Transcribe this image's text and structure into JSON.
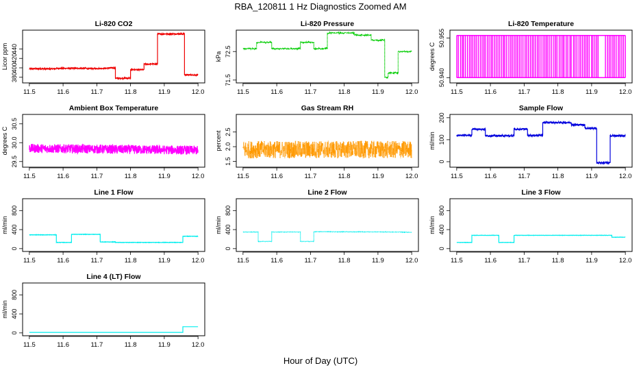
{
  "figure": {
    "title": "RBA_120811  1 Hz Diagnostics Zoomed AM",
    "xlabel": "Hour of Day (UTC)"
  },
  "chart_data": [
    {
      "type": "line",
      "title": "Li-820 CO2",
      "ylabel": "Licor ppm",
      "color": "#ee0000",
      "noise": 1.2,
      "xlim": [
        11.48,
        12.02
      ],
      "ylim": [
        368,
        480
      ],
      "xticks": [
        "11.5",
        "11.6",
        "11.7",
        "11.8",
        "11.9",
        "12.0"
      ],
      "xtick_values": [
        11.5,
        11.6,
        11.7,
        11.8,
        11.9,
        12.0
      ],
      "yticks": [
        "380",
        "400",
        "420",
        "440"
      ],
      "ytick_values": [
        380,
        400,
        420,
        440
      ],
      "points": [
        [
          11.5,
          398
        ],
        [
          11.58,
          398
        ],
        [
          11.58,
          399
        ],
        [
          11.67,
          399
        ],
        [
          11.67,
          398
        ],
        [
          11.72,
          399
        ],
        [
          11.755,
          400
        ],
        [
          11.755,
          378
        ],
        [
          11.8,
          378
        ],
        [
          11.8,
          396
        ],
        [
          11.84,
          396
        ],
        [
          11.84,
          408
        ],
        [
          11.88,
          408
        ],
        [
          11.88,
          472
        ],
        [
          11.96,
          472
        ],
        [
          11.96,
          385
        ],
        [
          12.0,
          385
        ]
      ]
    },
    {
      "type": "line",
      "title": "Li-820 Pressure",
      "ylabel": "kPa",
      "color": "#00cc00",
      "dotted": true,
      "noise": 0.015,
      "xlim": [
        11.48,
        12.02
      ],
      "ylim": [
        71.4,
        73.25
      ],
      "xticks": [
        "11.5",
        "11.6",
        "11.7",
        "11.8",
        "11.9",
        "12.0"
      ],
      "xtick_values": [
        11.5,
        11.6,
        11.7,
        11.8,
        11.9,
        12.0
      ],
      "yticks": [
        "71.5",
        "72.5"
      ],
      "ytick_values": [
        71.5,
        72.5
      ],
      "points": [
        [
          11.5,
          72.6
        ],
        [
          11.54,
          72.6
        ],
        [
          11.54,
          72.82
        ],
        [
          11.585,
          72.82
        ],
        [
          11.585,
          72.6
        ],
        [
          11.67,
          72.6
        ],
        [
          11.67,
          72.82
        ],
        [
          11.71,
          72.82
        ],
        [
          11.71,
          72.6
        ],
        [
          11.75,
          72.6
        ],
        [
          11.75,
          73.15
        ],
        [
          11.83,
          73.15
        ],
        [
          11.83,
          73.08
        ],
        [
          11.88,
          73.08
        ],
        [
          11.88,
          72.9
        ],
        [
          11.92,
          72.9
        ],
        [
          11.92,
          71.6
        ],
        [
          11.93,
          71.6
        ],
        [
          11.93,
          71.75
        ],
        [
          11.96,
          71.75
        ],
        [
          11.96,
          72.5
        ],
        [
          12.0,
          72.5
        ]
      ]
    },
    {
      "type": "line",
      "title": "Li-820 Temperature",
      "ylabel": "degrees C",
      "color": "#ff00ff",
      "binary": true,
      "low": 50.94,
      "high": 50.956,
      "xlim": [
        11.48,
        12.02
      ],
      "ylim": [
        50.938,
        50.958
      ],
      "xticks": [
        "11.5",
        "11.6",
        "11.7",
        "11.8",
        "11.9",
        "12.0"
      ],
      "xtick_values": [
        11.5,
        11.6,
        11.7,
        11.8,
        11.9,
        12.0
      ],
      "yticks": [
        "50.940",
        "50.955"
      ],
      "ytick_values": [
        50.94,
        50.955
      ],
      "points": [
        [
          11.5,
          50.94
        ],
        [
          12.0,
          50.94
        ]
      ]
    },
    {
      "type": "line",
      "title": "Ambient Box Temperature",
      "ylabel": "degrees C",
      "color": "#ff00ff",
      "noise": 0.12,
      "xlim": [
        11.48,
        12.02
      ],
      "ylim": [
        29.35,
        30.75
      ],
      "xticks": [
        "11.5",
        "11.6",
        "11.7",
        "11.8",
        "11.9",
        "12.0"
      ],
      "xtick_values": [
        11.5,
        11.6,
        11.7,
        11.8,
        11.9,
        12.0
      ],
      "yticks": [
        "29.5",
        "30.0",
        "30.5"
      ],
      "ytick_values": [
        29.5,
        30.0,
        30.5
      ],
      "points": [
        [
          11.5,
          29.85
        ],
        [
          12.0,
          29.8
        ]
      ]
    },
    {
      "type": "line",
      "title": "Gas Stream RH",
      "ylabel": "percent",
      "color": "#ff9900",
      "dotted": true,
      "noise": 0.3,
      "xlim": [
        11.48,
        12.02
      ],
      "ylim": [
        1.3,
        3.1
      ],
      "xticks": [
        "11.5",
        "11.6",
        "11.7",
        "11.8",
        "11.9",
        "12.0"
      ],
      "xtick_values": [
        11.5,
        11.6,
        11.7,
        11.8,
        11.9,
        12.0
      ],
      "yticks": [
        "1.5",
        "2.0",
        "2.5"
      ],
      "ytick_values": [
        1.5,
        2.0,
        2.5
      ],
      "points": [
        [
          11.5,
          1.9
        ],
        [
          12.0,
          1.9
        ]
      ]
    },
    {
      "type": "line",
      "title": "Sample Flow",
      "ylabel": "ml/min",
      "color": "#0000dd",
      "noise": 4,
      "xlim": [
        11.48,
        12.02
      ],
      "ylim": [
        -25,
        215
      ],
      "xticks": [
        "11.5",
        "11.6",
        "11.7",
        "11.8",
        "11.9",
        "12.0"
      ],
      "xtick_values": [
        11.5,
        11.6,
        11.7,
        11.8,
        11.9,
        12.0
      ],
      "yticks": [
        "0",
        "100",
        "200"
      ],
      "ytick_values": [
        0,
        100,
        200
      ],
      "points": [
        [
          11.5,
          120
        ],
        [
          11.545,
          120
        ],
        [
          11.545,
          148
        ],
        [
          11.585,
          148
        ],
        [
          11.585,
          118
        ],
        [
          11.67,
          118
        ],
        [
          11.67,
          148
        ],
        [
          11.71,
          148
        ],
        [
          11.71,
          120
        ],
        [
          11.755,
          120
        ],
        [
          11.755,
          178
        ],
        [
          11.84,
          178
        ],
        [
          11.84,
          168
        ],
        [
          11.88,
          168
        ],
        [
          11.88,
          152
        ],
        [
          11.915,
          152
        ],
        [
          11.915,
          -5
        ],
        [
          11.955,
          -5
        ],
        [
          11.955,
          118
        ],
        [
          12.0,
          118
        ]
      ]
    },
    {
      "type": "line",
      "title": "Line 1 Flow",
      "ylabel": "ml/min",
      "color": "#00eeee",
      "noise": 4,
      "xlim": [
        11.48,
        12.02
      ],
      "ylim": [
        -60,
        1050
      ],
      "xticks": [
        "11.5",
        "11.6",
        "11.7",
        "11.8",
        "11.9",
        "12.0"
      ],
      "xtick_values": [
        11.5,
        11.6,
        11.7,
        11.8,
        11.9,
        12.0
      ],
      "yticks": [
        "0",
        "400",
        "800"
      ],
      "ytick_values": [
        0,
        400,
        800
      ],
      "points": [
        [
          11.5,
          290
        ],
        [
          11.58,
          290
        ],
        [
          11.58,
          130
        ],
        [
          11.625,
          130
        ],
        [
          11.625,
          300
        ],
        [
          11.71,
          300
        ],
        [
          11.71,
          140
        ],
        [
          11.755,
          140
        ],
        [
          11.755,
          130
        ],
        [
          11.955,
          130
        ],
        [
          11.955,
          260
        ],
        [
          12.0,
          260
        ]
      ]
    },
    {
      "type": "line",
      "title": "Line 2 Flow",
      "ylabel": "ml/min",
      "color": "#00eeee",
      "dotted": true,
      "noise": 3,
      "xlim": [
        11.48,
        12.02
      ],
      "ylim": [
        -60,
        1050
      ],
      "xticks": [
        "11.5",
        "11.6",
        "11.7",
        "11.8",
        "11.9",
        "12.0"
      ],
      "xtick_values": [
        11.5,
        11.6,
        11.7,
        11.8,
        11.9,
        12.0
      ],
      "yticks": [
        "0",
        "400",
        "800"
      ],
      "ytick_values": [
        0,
        400,
        800
      ],
      "points": [
        [
          11.5,
          350
        ],
        [
          11.545,
          350
        ],
        [
          11.545,
          150
        ],
        [
          11.585,
          150
        ],
        [
          11.585,
          350
        ],
        [
          11.67,
          350
        ],
        [
          11.67,
          150
        ],
        [
          11.71,
          150
        ],
        [
          11.71,
          355
        ],
        [
          11.96,
          350
        ],
        [
          12.0,
          340
        ]
      ]
    },
    {
      "type": "line",
      "title": "Line 3 Flow",
      "ylabel": "ml/min",
      "color": "#00eeee",
      "noise": 3,
      "xlim": [
        11.48,
        12.02
      ],
      "ylim": [
        -60,
        1050
      ],
      "xticks": [
        "11.5",
        "11.6",
        "11.7",
        "11.8",
        "11.9",
        "12.0"
      ],
      "xtick_values": [
        11.5,
        11.6,
        11.7,
        11.8,
        11.9,
        12.0
      ],
      "yticks": [
        "0",
        "400",
        "800"
      ],
      "ytick_values": [
        0,
        400,
        800
      ],
      "points": [
        [
          11.5,
          130
        ],
        [
          11.545,
          130
        ],
        [
          11.545,
          280
        ],
        [
          11.625,
          280
        ],
        [
          11.625,
          130
        ],
        [
          11.67,
          130
        ],
        [
          11.67,
          280
        ],
        [
          11.96,
          280
        ],
        [
          11.96,
          240
        ],
        [
          12.0,
          240
        ]
      ]
    },
    {
      "type": "line",
      "title": "Line 4 (LT) Flow",
      "ylabel": "ml/min",
      "color": "#00eeee",
      "noise": 0,
      "xlim": [
        11.48,
        12.02
      ],
      "ylim": [
        -60,
        1050
      ],
      "xticks": [
        "11.5",
        "11.6",
        "11.7",
        "11.8",
        "11.9",
        "12.0"
      ],
      "xtick_values": [
        11.5,
        11.6,
        11.7,
        11.8,
        11.9,
        12.0
      ],
      "yticks": [
        "0",
        "400",
        "800"
      ],
      "ytick_values": [
        0,
        400,
        800
      ],
      "points": [
        [
          11.5,
          10
        ],
        [
          11.955,
          10
        ],
        [
          11.955,
          130
        ],
        [
          12.0,
          130
        ]
      ]
    }
  ]
}
